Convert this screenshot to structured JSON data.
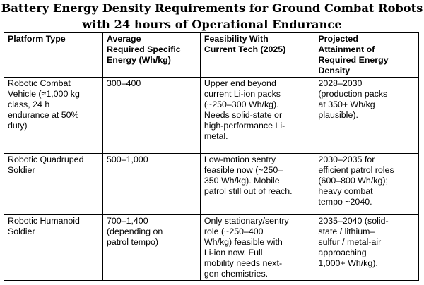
{
  "title": "Battery Energy Density Requirements for Ground Combat Robots\nwith 24 hours of Operational Endurance",
  "table": {
    "headers": [
      "Platform Type",
      "Average\nRequired Specific\nEnergy (Wh/kg)",
      "Feasibility With\nCurrent Tech (2025)",
      "Projected\nAttainment of\nRequired Energy\nDensity"
    ],
    "rows": [
      [
        "Robotic Combat\nVehicle (≈1,000 kg\nclass, 24 h\nendurance at 50%\nduty)",
        "300–400",
        "Upper end beyond\ncurrent Li-ion packs\n(~250–300 Wh/kg).\nNeeds solid-state or\nhigh-performance Li-\nmetal.",
        "2028–2030\n(production packs\nat 350+ Wh/kg\nplausible)."
      ],
      [
        "Robotic Quadruped\nSoldier",
        "500–1,000",
        "Low-motion sentry\nfeasible now (~250–\n350 Wh/kg). Mobile\npatrol still out of reach.",
        "2030–2035 for\nefficient patrol roles\n(600–800 Wh/kg);\nheavy combat\ntempo ~2040."
      ],
      [
        "Robotic Humanoid\nSoldier",
        "700–1,400\n(depending on\npatrol tempo)",
        "Only stationary/sentry\nrole (~250–400\nWh/kg) feasible with\nLi-ion now. Full\nmobility needs next-\ngen chemistries.",
        "2035–2040 (solid-\nstate / lithium–\nsulfur / metal-air\napproaching\n1,000+ Wh/kg)."
      ]
    ]
  }
}
